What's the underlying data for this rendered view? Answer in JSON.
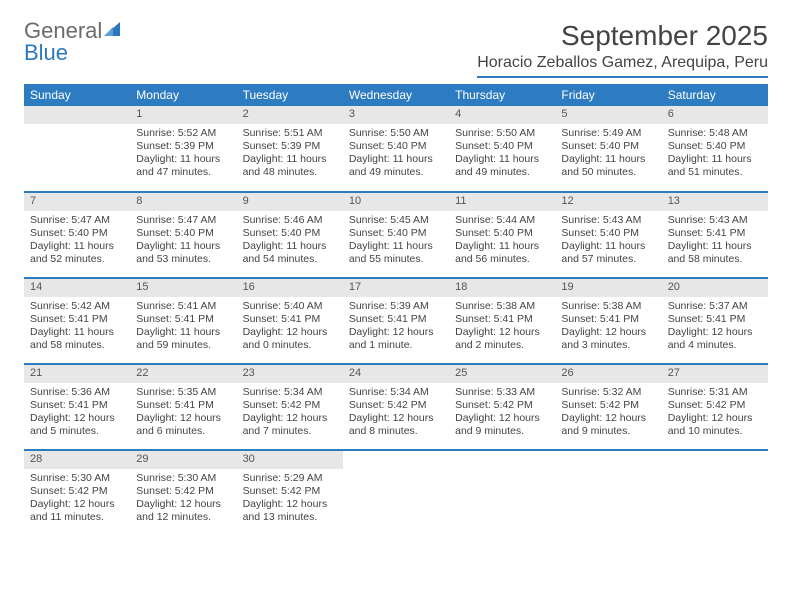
{
  "brand": {
    "part1": "General",
    "part2": "Blue"
  },
  "title": "September 2025",
  "location": "Horacio Zeballos Gamez, Arequipa, Peru",
  "colors": {
    "accent": "#2d7cc1",
    "header_text": "#ffffff",
    "daynum_bg": "#e7e7e7",
    "text": "#444444",
    "logo_gray": "#6b6b6b",
    "logo_blue": "#2b77c0",
    "background": "#ffffff"
  },
  "weekdays": [
    "Sunday",
    "Monday",
    "Tuesday",
    "Wednesday",
    "Thursday",
    "Friday",
    "Saturday"
  ],
  "weeks": [
    [
      {
        "blank": true
      },
      {
        "d": "1",
        "sr": "5:52 AM",
        "ss": "5:39 PM",
        "dl": "11 hours and 47 minutes."
      },
      {
        "d": "2",
        "sr": "5:51 AM",
        "ss": "5:39 PM",
        "dl": "11 hours and 48 minutes."
      },
      {
        "d": "3",
        "sr": "5:50 AM",
        "ss": "5:40 PM",
        "dl": "11 hours and 49 minutes."
      },
      {
        "d": "4",
        "sr": "5:50 AM",
        "ss": "5:40 PM",
        "dl": "11 hours and 49 minutes."
      },
      {
        "d": "5",
        "sr": "5:49 AM",
        "ss": "5:40 PM",
        "dl": "11 hours and 50 minutes."
      },
      {
        "d": "6",
        "sr": "5:48 AM",
        "ss": "5:40 PM",
        "dl": "11 hours and 51 minutes."
      }
    ],
    [
      {
        "d": "7",
        "sr": "5:47 AM",
        "ss": "5:40 PM",
        "dl": "11 hours and 52 minutes."
      },
      {
        "d": "8",
        "sr": "5:47 AM",
        "ss": "5:40 PM",
        "dl": "11 hours and 53 minutes."
      },
      {
        "d": "9",
        "sr": "5:46 AM",
        "ss": "5:40 PM",
        "dl": "11 hours and 54 minutes."
      },
      {
        "d": "10",
        "sr": "5:45 AM",
        "ss": "5:40 PM",
        "dl": "11 hours and 55 minutes."
      },
      {
        "d": "11",
        "sr": "5:44 AM",
        "ss": "5:40 PM",
        "dl": "11 hours and 56 minutes."
      },
      {
        "d": "12",
        "sr": "5:43 AM",
        "ss": "5:40 PM",
        "dl": "11 hours and 57 minutes."
      },
      {
        "d": "13",
        "sr": "5:43 AM",
        "ss": "5:41 PM",
        "dl": "11 hours and 58 minutes."
      }
    ],
    [
      {
        "d": "14",
        "sr": "5:42 AM",
        "ss": "5:41 PM",
        "dl": "11 hours and 58 minutes."
      },
      {
        "d": "15",
        "sr": "5:41 AM",
        "ss": "5:41 PM",
        "dl": "11 hours and 59 minutes."
      },
      {
        "d": "16",
        "sr": "5:40 AM",
        "ss": "5:41 PM",
        "dl": "12 hours and 0 minutes."
      },
      {
        "d": "17",
        "sr": "5:39 AM",
        "ss": "5:41 PM",
        "dl": "12 hours and 1 minute."
      },
      {
        "d": "18",
        "sr": "5:38 AM",
        "ss": "5:41 PM",
        "dl": "12 hours and 2 minutes."
      },
      {
        "d": "19",
        "sr": "5:38 AM",
        "ss": "5:41 PM",
        "dl": "12 hours and 3 minutes."
      },
      {
        "d": "20",
        "sr": "5:37 AM",
        "ss": "5:41 PM",
        "dl": "12 hours and 4 minutes."
      }
    ],
    [
      {
        "d": "21",
        "sr": "5:36 AM",
        "ss": "5:41 PM",
        "dl": "12 hours and 5 minutes."
      },
      {
        "d": "22",
        "sr": "5:35 AM",
        "ss": "5:41 PM",
        "dl": "12 hours and 6 minutes."
      },
      {
        "d": "23",
        "sr": "5:34 AM",
        "ss": "5:42 PM",
        "dl": "12 hours and 7 minutes."
      },
      {
        "d": "24",
        "sr": "5:34 AM",
        "ss": "5:42 PM",
        "dl": "12 hours and 8 minutes."
      },
      {
        "d": "25",
        "sr": "5:33 AM",
        "ss": "5:42 PM",
        "dl": "12 hours and 9 minutes."
      },
      {
        "d": "26",
        "sr": "5:32 AM",
        "ss": "5:42 PM",
        "dl": "12 hours and 9 minutes."
      },
      {
        "d": "27",
        "sr": "5:31 AM",
        "ss": "5:42 PM",
        "dl": "12 hours and 10 minutes."
      }
    ],
    [
      {
        "d": "28",
        "sr": "5:30 AM",
        "ss": "5:42 PM",
        "dl": "12 hours and 11 minutes."
      },
      {
        "d": "29",
        "sr": "5:30 AM",
        "ss": "5:42 PM",
        "dl": "12 hours and 12 minutes."
      },
      {
        "d": "30",
        "sr": "5:29 AM",
        "ss": "5:42 PM",
        "dl": "12 hours and 13 minutes."
      },
      {
        "blank": true
      },
      {
        "blank": true
      },
      {
        "blank": true
      },
      {
        "blank": true
      }
    ]
  ],
  "labels": {
    "sunrise": "Sunrise: ",
    "sunset": "Sunset: ",
    "daylight": "Daylight: "
  }
}
